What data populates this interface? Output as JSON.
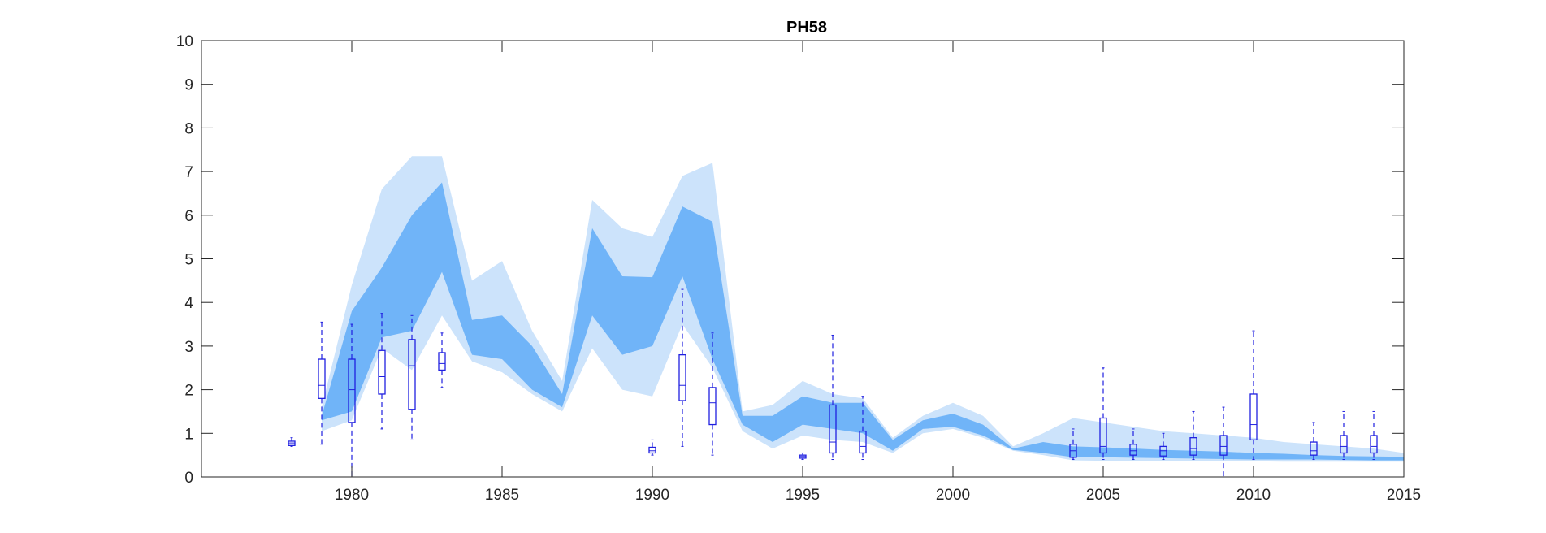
{
  "chart_data": {
    "type": "area",
    "title": "PH58",
    "xlabel": "",
    "ylabel": "",
    "xlim": [
      1975,
      2015
    ],
    "ylim": [
      0,
      10
    ],
    "x_ticks": [
      1980,
      1985,
      1990,
      1995,
      2000,
      2005,
      2010,
      2015
    ],
    "y_ticks": [
      0,
      1,
      2,
      3,
      4,
      5,
      6,
      7,
      8,
      9,
      10
    ],
    "grid": false,
    "legend": "none",
    "colors": {
      "outer_band": "#cce3fb",
      "inner_band": "#70b4f8",
      "boxplot": "#1f1fe0",
      "axis": "#262626"
    },
    "bands": {
      "x": [
        1979,
        1980,
        1981,
        1982,
        1983,
        1984,
        1985,
        1986,
        1987,
        1988,
        1989,
        1990,
        1991,
        1992,
        1993,
        1994,
        1995,
        1996,
        1997,
        1998,
        1999,
        2000,
        2001,
        2002,
        2003,
        2004,
        2005,
        2006,
        2007,
        2008,
        2009,
        2010,
        2011,
        2012,
        2013,
        2014,
        2015
      ],
      "outer_upper": [
        1.6,
        4.4,
        6.6,
        7.35,
        7.35,
        4.5,
        4.95,
        3.35,
        2.2,
        6.35,
        5.7,
        5.5,
        6.9,
        7.2,
        1.5,
        1.65,
        2.2,
        1.9,
        1.8,
        0.9,
        1.4,
        1.7,
        1.4,
        0.7,
        1.0,
        1.35,
        1.25,
        1.15,
        1.05,
        1.0,
        0.95,
        0.9,
        0.8,
        0.75,
        0.7,
        0.65,
        0.55
      ],
      "inner_upper": [
        1.4,
        3.8,
        4.8,
        6.0,
        6.75,
        3.6,
        3.7,
        3.0,
        1.9,
        5.7,
        4.6,
        4.58,
        6.2,
        5.85,
        1.4,
        1.4,
        1.85,
        1.7,
        1.7,
        0.85,
        1.3,
        1.45,
        1.2,
        0.65,
        0.8,
        0.7,
        0.68,
        0.65,
        0.62,
        0.6,
        0.58,
        0.55,
        0.53,
        0.5,
        0.48,
        0.47,
        0.46
      ],
      "inner_lower": [
        1.3,
        1.5,
        3.2,
        3.35,
        4.7,
        2.8,
        2.7,
        2.0,
        1.6,
        3.7,
        2.8,
        3.0,
        4.6,
        2.7,
        1.2,
        0.8,
        1.2,
        1.1,
        1.0,
        0.6,
        1.1,
        1.15,
        0.95,
        0.62,
        0.55,
        0.45,
        0.45,
        0.44,
        0.43,
        0.42,
        0.41,
        0.4,
        0.4,
        0.4,
        0.39,
        0.38,
        0.38
      ],
      "outer_lower": [
        1.05,
        1.3,
        2.95,
        2.45,
        3.7,
        2.65,
        2.4,
        1.9,
        1.5,
        2.95,
        2.0,
        1.85,
        3.5,
        2.5,
        1.05,
        0.65,
        0.95,
        0.85,
        0.8,
        0.55,
        1.0,
        1.1,
        0.9,
        0.6,
        0.5,
        0.38,
        0.37,
        0.37,
        0.36,
        0.36,
        0.36,
        0.36,
        0.35,
        0.35,
        0.35,
        0.35,
        0.35
      ]
    },
    "boxplots": [
      {
        "x": 1978,
        "whisker_low": 0.7,
        "q1": 0.72,
        "median": 0.78,
        "q3": 0.82,
        "whisker_high": 0.9
      },
      {
        "x": 1979,
        "whisker_low": 0.75,
        "q1": 1.8,
        "median": 2.1,
        "q3": 2.7,
        "whisker_high": 3.55
      },
      {
        "x": 1980,
        "whisker_low": 0.0,
        "q1": 1.25,
        "median": 2.0,
        "q3": 2.7,
        "whisker_high": 3.5
      },
      {
        "x": 1981,
        "whisker_low": 1.1,
        "q1": 1.9,
        "median": 2.3,
        "q3": 2.9,
        "whisker_high": 3.75
      },
      {
        "x": 1982,
        "whisker_low": 0.85,
        "q1": 1.55,
        "median": 2.55,
        "q3": 3.15,
        "whisker_high": 3.7
      },
      {
        "x": 1983,
        "whisker_low": 2.05,
        "q1": 2.45,
        "median": 2.6,
        "q3": 2.85,
        "whisker_high": 3.3
      },
      {
        "x": 1990,
        "whisker_low": 0.5,
        "q1": 0.55,
        "median": 0.6,
        "q3": 0.68,
        "whisker_high": 0.85
      },
      {
        "x": 1991,
        "whisker_low": 0.7,
        "q1": 1.75,
        "median": 2.1,
        "q3": 2.8,
        "whisker_high": 4.3
      },
      {
        "x": 1992,
        "whisker_low": 0.5,
        "q1": 1.2,
        "median": 1.7,
        "q3": 2.05,
        "whisker_high": 3.3
      },
      {
        "x": 1995,
        "whisker_low": 0.4,
        "q1": 0.43,
        "median": 0.47,
        "q3": 0.5,
        "whisker_high": 0.55
      },
      {
        "x": 1996,
        "whisker_low": 0.4,
        "q1": 0.55,
        "median": 0.8,
        "q3": 1.65,
        "whisker_high": 3.25
      },
      {
        "x": 1997,
        "whisker_low": 0.4,
        "q1": 0.55,
        "median": 0.7,
        "q3": 1.05,
        "whisker_high": 1.85
      },
      {
        "x": 2004,
        "whisker_low": 0.4,
        "q1": 0.45,
        "median": 0.6,
        "q3": 0.75,
        "whisker_high": 1.1
      },
      {
        "x": 2005,
        "whisker_low": 0.4,
        "q1": 0.55,
        "median": 0.7,
        "q3": 1.35,
        "whisker_high": 2.5
      },
      {
        "x": 2006,
        "whisker_low": 0.4,
        "q1": 0.5,
        "median": 0.6,
        "q3": 0.75,
        "whisker_high": 1.1
      },
      {
        "x": 2007,
        "whisker_low": 0.4,
        "q1": 0.48,
        "median": 0.6,
        "q3": 0.7,
        "whisker_high": 1.0
      },
      {
        "x": 2008,
        "whisker_low": 0.4,
        "q1": 0.5,
        "median": 0.65,
        "q3": 0.9,
        "whisker_high": 1.5
      },
      {
        "x": 2009,
        "whisker_low": 0.0,
        "q1": 0.5,
        "median": 0.7,
        "q3": 0.95,
        "whisker_high": 1.6
      },
      {
        "x": 2010,
        "whisker_low": 0.4,
        "q1": 0.85,
        "median": 1.2,
        "q3": 1.9,
        "whisker_high": 3.35
      },
      {
        "x": 2012,
        "whisker_low": 0.4,
        "q1": 0.5,
        "median": 0.6,
        "q3": 0.8,
        "whisker_high": 1.25
      },
      {
        "x": 2013,
        "whisker_low": 0.4,
        "q1": 0.55,
        "median": 0.7,
        "q3": 0.95,
        "whisker_high": 1.5
      },
      {
        "x": 2014,
        "whisker_low": 0.4,
        "q1": 0.55,
        "median": 0.7,
        "q3": 0.95,
        "whisker_high": 1.5
      }
    ]
  }
}
